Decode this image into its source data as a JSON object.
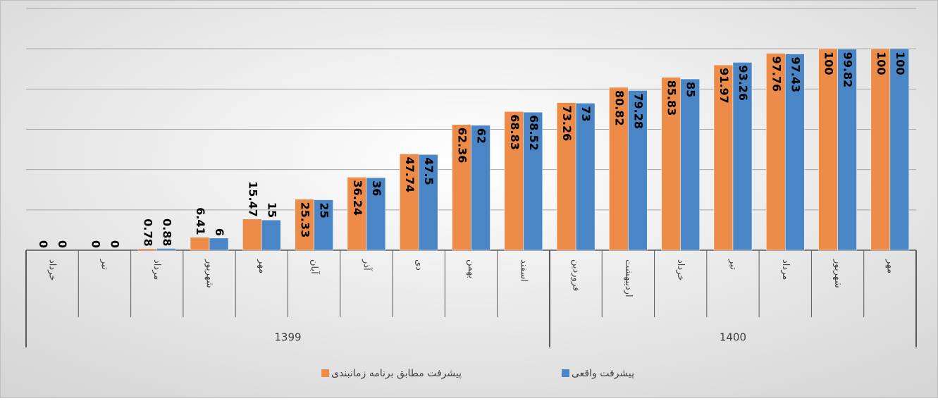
{
  "chart_data": {
    "type": "bar",
    "groups": [
      {
        "label": "1399",
        "categories": [
          "خرداد",
          "تیر",
          "مرداد",
          "شهریور",
          "مهر",
          "آبان",
          "آذر",
          "دی",
          "بهمن",
          "اسفند"
        ]
      },
      {
        "label": "1400",
        "categories": [
          "فروردین",
          "اردیبهشت",
          "خرداد",
          "تیر",
          "مرداد",
          "شهریور",
          "مهر"
        ]
      }
    ],
    "series": [
      {
        "name": "پیشرفت مطابق برنامه زمانبندی",
        "color": "#ed8b48",
        "values": [
          0,
          0,
          0.78,
          6.41,
          15.47,
          25.33,
          36.24,
          47.74,
          62.36,
          68.83,
          73.26,
          80.82,
          85.83,
          91.97,
          97.76,
          100,
          100
        ]
      },
      {
        "name": "پیشرفت واقعی",
        "color": "#4a86c5",
        "values": [
          0,
          0,
          0.88,
          6,
          15,
          25,
          36,
          47.5,
          62,
          68.52,
          73,
          79.28,
          85,
          93.26,
          97.43,
          99.82,
          100
        ]
      }
    ],
    "ylim": [
      0,
      120
    ],
    "yticks": [
      0,
      20,
      40,
      60,
      80,
      100,
      120
    ],
    "grid": true
  }
}
